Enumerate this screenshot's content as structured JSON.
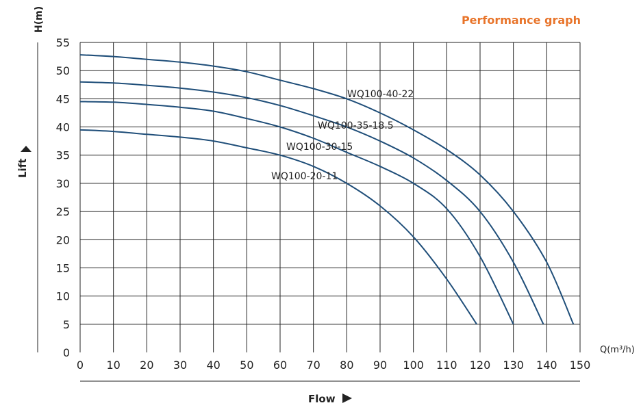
{
  "header": {
    "title": "Performance graph"
  },
  "chart_data": {
    "type": "line",
    "title": "Performance graph",
    "xlabel": "Flow",
    "ylabel": "Lift",
    "x_unit_label": "Q(m³/h)",
    "y_unit_label": "H(m)",
    "xlim": [
      0,
      150
    ],
    "ylim": [
      0,
      55
    ],
    "x_ticks": [
      "0",
      "10",
      "20",
      "30",
      "40",
      "50",
      "60",
      "70",
      "80",
      "90",
      "100",
      "110",
      "120",
      "130",
      "140",
      "150"
    ],
    "y_ticks": [
      "0",
      "5",
      "10",
      "15",
      "20",
      "25",
      "30",
      "35",
      "40",
      "45",
      "50",
      "55"
    ],
    "grid": true,
    "series_color": "#1f4e79",
    "series": [
      {
        "name": "WQ100-40-22",
        "x": [
          0,
          10,
          20,
          30,
          40,
          50,
          60,
          70,
          80,
          90,
          100,
          110,
          120,
          130,
          140,
          148
        ],
        "y": [
          52.8,
          52.5,
          52.0,
          51.5,
          50.8,
          49.8,
          48.3,
          46.8,
          45.0,
          42.5,
          39.5,
          36.0,
          31.5,
          25.0,
          16.0,
          5
        ]
      },
      {
        "name": "WQ100-35-18.5",
        "x": [
          0,
          10,
          20,
          30,
          40,
          50,
          60,
          70,
          80,
          90,
          100,
          110,
          120,
          130,
          139
        ],
        "y": [
          48.0,
          47.8,
          47.4,
          46.9,
          46.2,
          45.2,
          43.8,
          42.0,
          40.0,
          37.5,
          34.5,
          30.5,
          25.0,
          16.0,
          5
        ]
      },
      {
        "name": "WQ100-30-15",
        "x": [
          0,
          10,
          20,
          30,
          40,
          50,
          60,
          70,
          80,
          90,
          100,
          110,
          120,
          130
        ],
        "y": [
          44.5,
          44.4,
          44.0,
          43.5,
          42.8,
          41.5,
          40.0,
          38.0,
          35.5,
          33.0,
          30.0,
          25.5,
          17.0,
          5
        ]
      },
      {
        "name": "WQ100-20-11",
        "x": [
          0,
          10,
          20,
          30,
          40,
          50,
          60,
          70,
          80,
          90,
          100,
          110,
          119
        ],
        "y": [
          39.5,
          39.2,
          38.7,
          38.2,
          37.5,
          36.3,
          35.0,
          33.0,
          30.0,
          26.0,
          20.5,
          13.0,
          5
        ]
      }
    ]
  }
}
